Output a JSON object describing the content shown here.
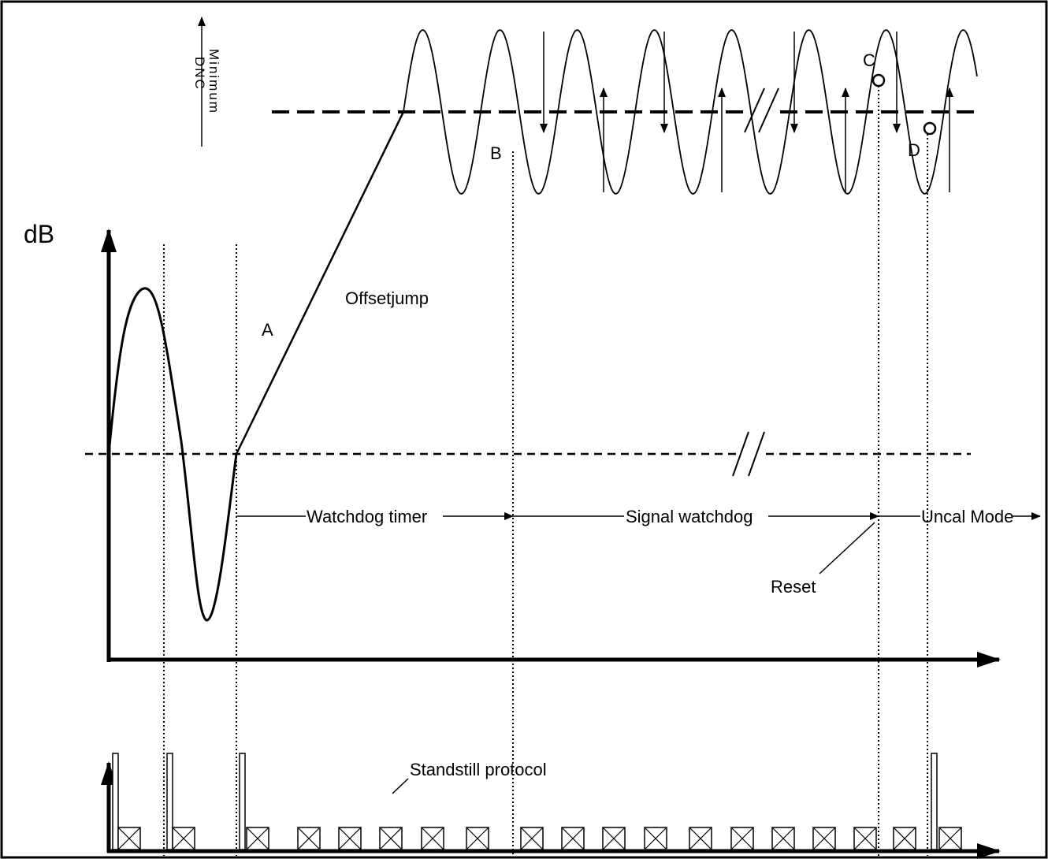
{
  "labels": {
    "y_axis": "dB",
    "min_dnc_line1": "Minimum",
    "min_dnc_line2": "DNC",
    "offsetjump": "Offsetjump",
    "point_a": "A",
    "point_b": "B",
    "point_c": "C",
    "point_d": "D",
    "watchdog_timer": "Watchdog timer",
    "signal_watchdog": "Signal watchdog",
    "uncal_mode": "Uncal Mode",
    "reset": "Reset",
    "standstill_protocol": "Standstill protocol"
  },
  "colors": {
    "stroke": "#000000",
    "background": "#ffffff"
  }
}
